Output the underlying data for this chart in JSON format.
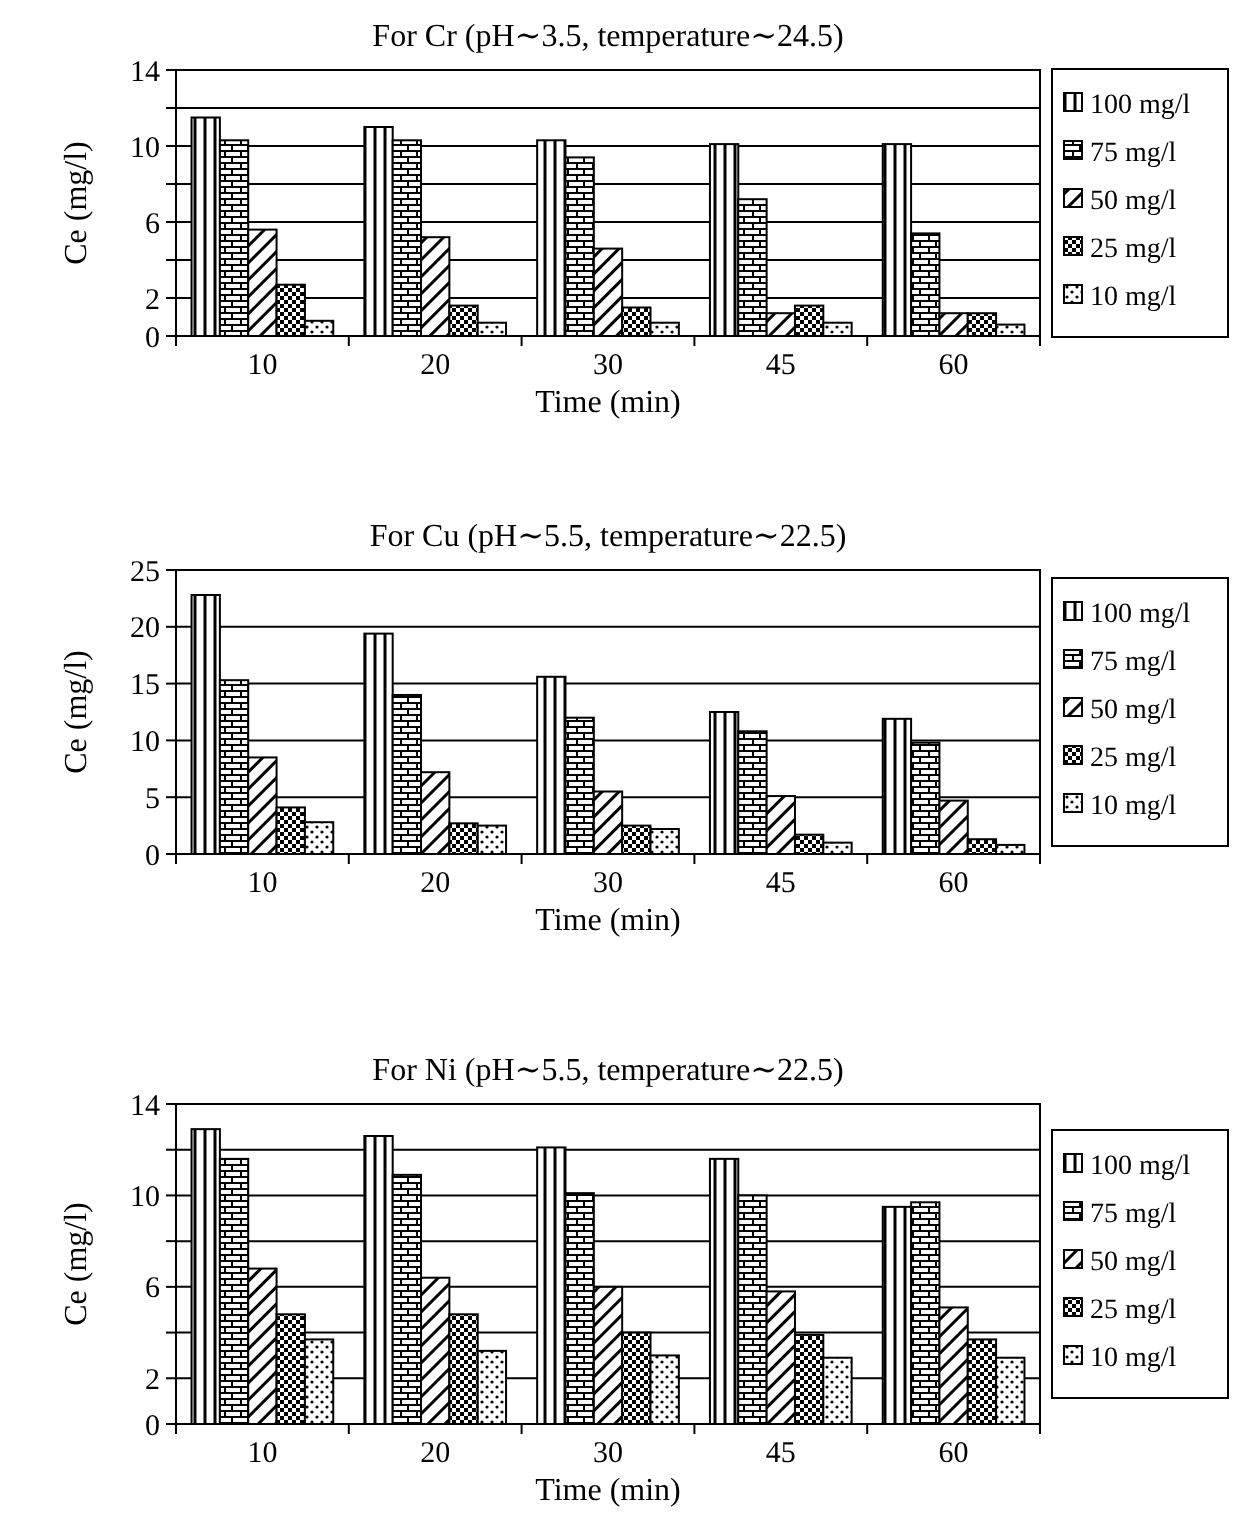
{
  "chart_data": [
    {
      "type": "bar",
      "title": "For Cr (pH∼3.5, temperature∼24.5)",
      "xlabel": "Time (min)",
      "ylabel": "Ce (mg/l)",
      "categories": [
        "10",
        "20",
        "30",
        "45",
        "60"
      ],
      "ylim": [
        0,
        14
      ],
      "yticks": [
        0,
        2,
        {
          "value": 4,
          "label": null
        },
        6,
        {
          "value": 8,
          "label": null
        },
        10,
        {
          "value": 12,
          "label": null
        },
        14
      ],
      "grid": "y",
      "legend": "right",
      "series": [
        {
          "name": "100 mg/l",
          "color": "#000000",
          "values": [
            11.5,
            11.0,
            10.3,
            10.1,
            10.1
          ]
        },
        {
          "name": "75 mg/l",
          "color": "#000000",
          "values": [
            10.3,
            10.3,
            9.4,
            7.2,
            5.4
          ]
        },
        {
          "name": "50 mg/l",
          "color": "#000000",
          "values": [
            5.6,
            5.2,
            4.6,
            1.2,
            1.2
          ]
        },
        {
          "name": "25 mg/l",
          "color": "#000000",
          "values": [
            2.7,
            1.6,
            1.5,
            1.6,
            1.2
          ]
        },
        {
          "name": "10 mg/l",
          "color": "#000000",
          "values": [
            0.8,
            0.7,
            0.7,
            0.7,
            0.6
          ]
        }
      ]
    },
    {
      "type": "bar",
      "title": "For Cu (pH∼5.5, temperature∼22.5)",
      "xlabel": "Time (min)",
      "ylabel": "Ce (mg/l)",
      "categories": [
        "10",
        "20",
        "30",
        "45",
        "60"
      ],
      "ylim": [
        0,
        25
      ],
      "yticks": [
        0,
        5,
        10,
        15,
        20,
        25
      ],
      "grid": "y",
      "legend": "right",
      "series": [
        {
          "name": "100 mg/l",
          "color": "#000000",
          "values": [
            22.8,
            19.4,
            15.6,
            12.5,
            11.9
          ]
        },
        {
          "name": "75 mg/l",
          "color": "#000000",
          "values": [
            15.3,
            14.0,
            12.0,
            10.8,
            9.8
          ]
        },
        {
          "name": "50 mg/l",
          "color": "#000000",
          "values": [
            8.5,
            7.2,
            5.5,
            5.1,
            4.7
          ]
        },
        {
          "name": "25 mg/l",
          "color": "#000000",
          "values": [
            4.1,
            2.7,
            2.5,
            1.7,
            1.3
          ]
        },
        {
          "name": "10 mg/l",
          "color": "#000000",
          "values": [
            2.8,
            2.5,
            2.2,
            1.0,
            0.8
          ]
        }
      ]
    },
    {
      "type": "bar",
      "title": "For Ni (pH∼5.5, temperature∼22.5)",
      "xlabel": "Time (min)",
      "ylabel": "Ce (mg/l)",
      "categories": [
        "10",
        "20",
        "30",
        "45",
        "60"
      ],
      "ylim": [
        0,
        14
      ],
      "yticks": [
        0,
        2,
        {
          "value": 4,
          "label": null
        },
        6,
        {
          "value": 8,
          "label": null
        },
        10,
        {
          "value": 12,
          "label": null
        },
        14
      ],
      "grid": "y",
      "legend": "right",
      "series": [
        {
          "name": "100 mg/l",
          "color": "#000000",
          "values": [
            12.9,
            12.6,
            12.1,
            11.6,
            9.5
          ]
        },
        {
          "name": "75 mg/l",
          "color": "#000000",
          "values": [
            11.6,
            10.9,
            10.1,
            10.0,
            9.7
          ]
        },
        {
          "name": "50 mg/l",
          "color": "#000000",
          "values": [
            6.8,
            6.4,
            6.0,
            5.8,
            5.1
          ]
        },
        {
          "name": "25 mg/l",
          "color": "#000000",
          "values": [
            4.8,
            4.8,
            4.0,
            3.9,
            3.7
          ]
        },
        {
          "name": "10 mg/l",
          "color": "#000000",
          "values": [
            3.7,
            3.2,
            3.0,
            2.9,
            2.9
          ]
        }
      ]
    }
  ]
}
